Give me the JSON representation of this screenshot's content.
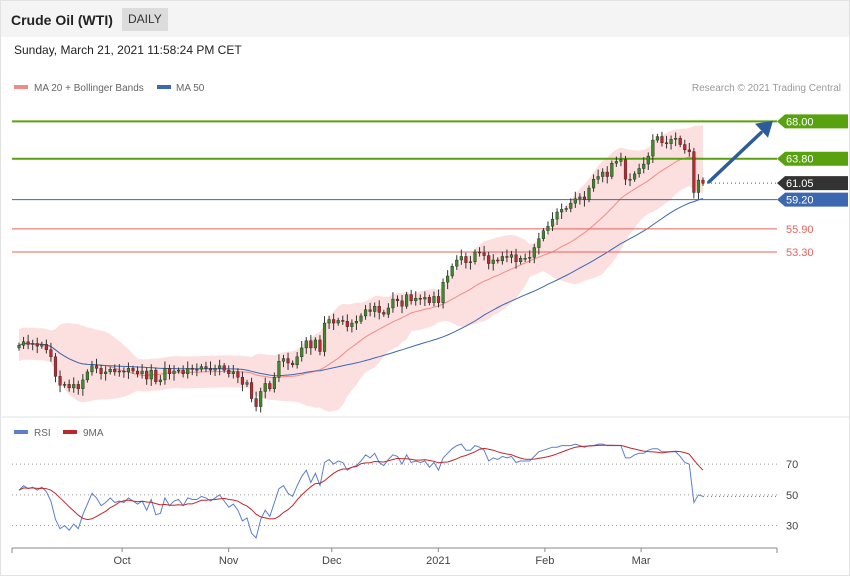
{
  "header": {
    "title": "Crude Oil (WTI)",
    "timeframe": "DAILY"
  },
  "date_text": "Sunday, March 21, 2021 11:58:24 PM CET",
  "legend": {
    "ma20": "MA 20 + Bollinger Bands",
    "ma50": "MA 50",
    "credit": "Research © 2021 Trading Central"
  },
  "rsi_legend": {
    "rsi": "RSI",
    "ma9": "9MA"
  },
  "colors": {
    "resistance": "#58a20f",
    "support": "#e8625a",
    "ma50": "#3c68b2",
    "last": "#333333",
    "band": "#fbd7d7",
    "up": "#3d8a28",
    "down": "#c0272d",
    "arrow": "#2e5c9a"
  },
  "chart_data": [
    {
      "type": "candlestick",
      "title": "Crude Oil (WTI)",
      "ylim": [
        35.4,
        69.4
      ],
      "x_labels": [
        "Oct",
        "Nov",
        "Dec",
        "2021",
        "Feb",
        "Mar"
      ],
      "x_label_dates": [
        "2020-10-01",
        "2020-11-01",
        "2020-12-01",
        "2021-01-01",
        "2021-02-01",
        "2021-03-01"
      ],
      "date_range": [
        "2020-09-01",
        "2021-03-19"
      ],
      "levels": [
        {
          "label": "68.00",
          "value": 68.0,
          "kind": "resistance"
        },
        {
          "label": "63.80",
          "value": 63.8,
          "kind": "resistance"
        },
        {
          "label": "61.05",
          "value": 61.05,
          "kind": "last"
        },
        {
          "label": "59.20",
          "value": 59.2,
          "kind": "ma50"
        },
        {
          "label": "55.90",
          "value": 55.9,
          "kind": "support"
        },
        {
          "label": "53.30",
          "value": 53.3,
          "kind": "support"
        }
      ],
      "close": [
        42.8,
        43.2,
        42.9,
        43.0,
        42.7,
        42.9,
        42.3,
        41.5,
        39.3,
        38.3,
        38.4,
        38.0,
        38.4,
        37.9,
        38.9,
        39.8,
        40.5,
        40.2,
        39.6,
        39.8,
        40.1,
        39.8,
        39.9,
        39.8,
        40.2,
        39.9,
        39.6,
        39.9,
        39.0,
        40.0,
        38.7,
        38.9,
        40.2,
        39.6,
        39.9,
        40.0,
        39.6,
        40.2,
        40.1,
        40.1,
        40.4,
        40.2,
        40.0,
        40.2,
        40.5,
        40.0,
        39.6,
        39.8,
        39.2,
        38.4,
        38.6,
        36.8,
        35.9,
        37.6,
        38.5,
        37.9,
        39.2,
        41.0,
        41.3,
        40.8,
        40.6,
        41.5,
        42.5,
        43.3,
        42.5,
        43.4,
        42.1,
        45.3,
        45.7,
        45.3,
        45.6,
        45.5,
        44.9,
        45.3,
        45.5,
        46.1,
        46.8,
        46.6,
        47.2,
        46.5,
        46.3,
        47.0,
        48.0,
        47.8,
        47.2,
        48.5,
        47.8,
        48.1,
        48.0,
        48.2,
        47.6,
        48.3,
        47.6,
        49.9,
        50.6,
        51.7,
        52.4,
        52.8,
        52.1,
        52.2,
        53.3,
        53.2,
        52.9,
        52.0,
        52.4,
        52.3,
        52.8,
        52.7,
        53.0,
        52.2,
        52.6,
        52.6,
        52.7,
        53.8,
        54.8,
        55.7,
        56.2,
        57.0,
        57.8,
        58.1,
        58.2,
        58.8,
        59.3,
        59.5,
        59.2,
        60.5,
        61.5,
        61.8,
        62.3,
        61.8,
        63.3,
        63.5,
        63.7,
        61.5,
        61.5,
        62.1,
        62.7,
        63.2,
        64.1,
        65.9,
        66.3,
        65.6,
        65.5,
        66.0,
        66.1,
        65.4,
        64.8,
        64.6,
        60.0,
        61.4,
        61.05
      ],
      "rsi": [
        53,
        56,
        54,
        55,
        53,
        55,
        52,
        46,
        34,
        28,
        30,
        27,
        31,
        28,
        37,
        44,
        51,
        48,
        43,
        45,
        48,
        45,
        46,
        45,
        48,
        46,
        44,
        46,
        40,
        47,
        37,
        38,
        48,
        43,
        46,
        47,
        43,
        48,
        47,
        47,
        49,
        48,
        46,
        48,
        50,
        46,
        42,
        44,
        40,
        33,
        35,
        25,
        22,
        34,
        40,
        36,
        45,
        54,
        56,
        51,
        49,
        56,
        62,
        66,
        58,
        64,
        56,
        71,
        73,
        70,
        72,
        71,
        66,
        68,
        69,
        72,
        76,
        74,
        77,
        71,
        69,
        73,
        76,
        75,
        70,
        76,
        71,
        72,
        71,
        72,
        68,
        71,
        66,
        74,
        77,
        80,
        82,
        83,
        79,
        79,
        82,
        81,
        79,
        72,
        74,
        73,
        75,
        74,
        75,
        71,
        72,
        72,
        72,
        75,
        78,
        79,
        80,
        81,
        81,
        82,
        82,
        82,
        83,
        82,
        81,
        82,
        82,
        83,
        83,
        82,
        82,
        82,
        82,
        74,
        74,
        76,
        77,
        77,
        79,
        80,
        80,
        78,
        78,
        78,
        78,
        75,
        71,
        70,
        45,
        50,
        49
      ],
      "rsi_ylim": [
        20,
        85
      ],
      "rsi_ticks": [
        30,
        50,
        70
      ],
      "legend_placement": "top-left"
    }
  ]
}
